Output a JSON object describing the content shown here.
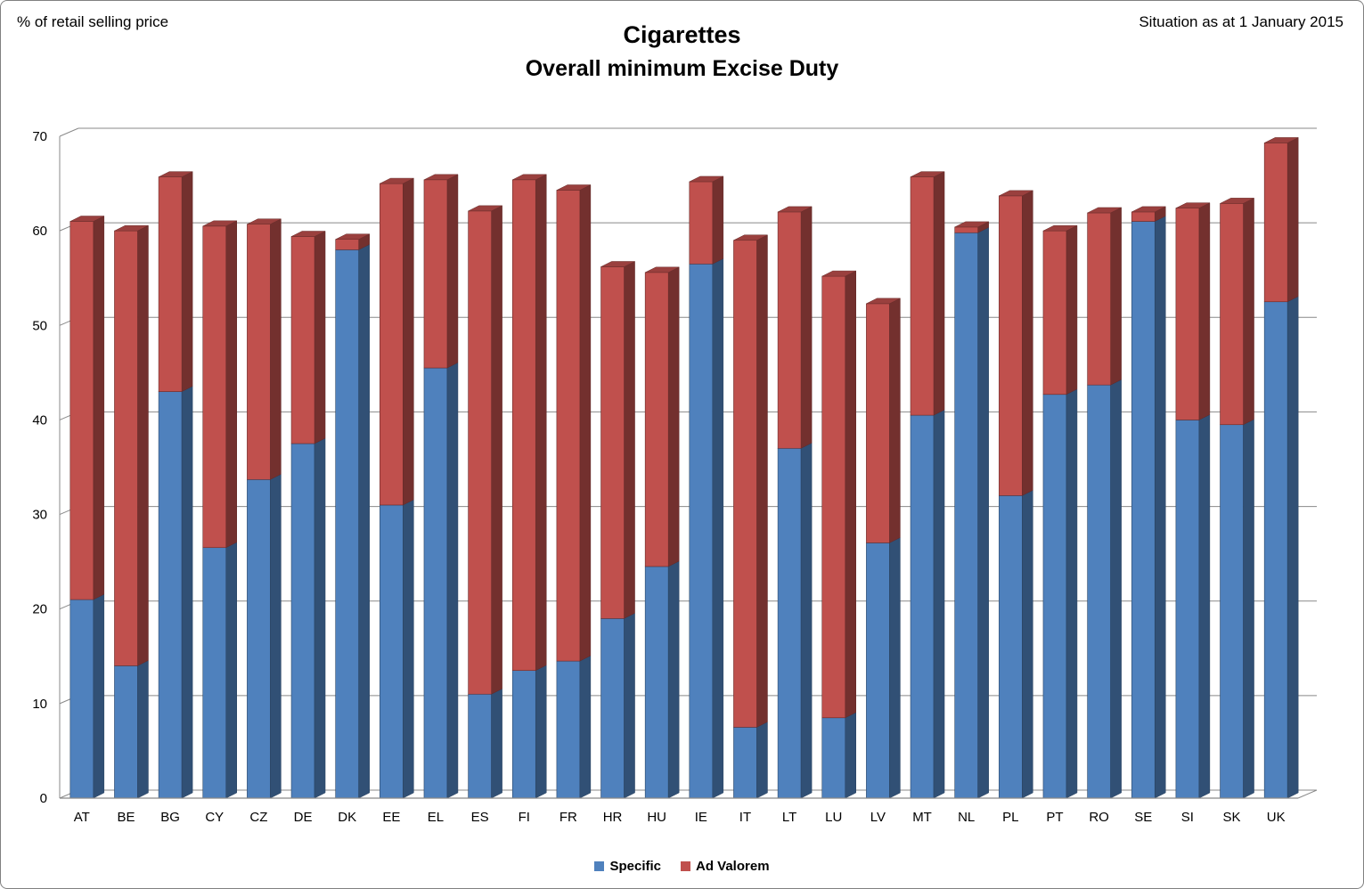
{
  "header": {
    "left_note": "% of retail selling price",
    "right_note": "Situation as at 1 January 2015",
    "title_line1": "Cigarettes",
    "title_line2": "Overall minimum Excise Duty"
  },
  "chart_data": {
    "type": "bar",
    "stacked": true,
    "effect": "3d",
    "title": "Cigarettes — Overall minimum Excise Duty",
    "xlabel": "",
    "ylabel": "% of retail selling price",
    "ylim": [
      0,
      70
    ],
    "yticks": [
      0,
      10,
      20,
      30,
      40,
      50,
      60,
      70
    ],
    "grid": true,
    "legend_position": "bottom",
    "categories": [
      "AT",
      "BE",
      "BG",
      "CY",
      "CZ",
      "DE",
      "DK",
      "EE",
      "EL",
      "ES",
      "FI",
      "FR",
      "HR",
      "HU",
      "IE",
      "IT",
      "LT",
      "LU",
      "LV",
      "MT",
      "NL",
      "PL",
      "PT",
      "RO",
      "SE",
      "SI",
      "SK",
      "UK"
    ],
    "series": [
      {
        "name": "Specific",
        "color": "#4F81BD",
        "values": [
          21,
          14,
          43,
          26.5,
          33.7,
          37.5,
          58,
          31,
          45.5,
          11,
          13.5,
          14.5,
          19,
          24.5,
          56.5,
          7.5,
          37,
          8.5,
          27,
          40.5,
          59.8,
          32,
          42.7,
          43.7,
          61,
          40,
          39.5,
          52.5
        ]
      },
      {
        "name": "Ad Valorem",
        "color": "#C0504D",
        "values": [
          40,
          46,
          22.7,
          34,
          27,
          21.9,
          1.1,
          34,
          19.9,
          51.1,
          51.9,
          49.8,
          37.2,
          31.1,
          8.7,
          51.5,
          25,
          46.7,
          25.3,
          25.2,
          0.6,
          31.7,
          17.3,
          18.2,
          1.0,
          22.4,
          23.4,
          16.8
        ]
      }
    ]
  }
}
